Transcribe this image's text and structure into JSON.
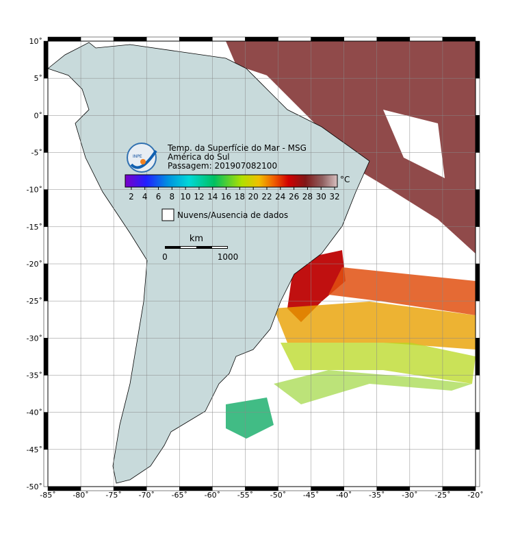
{
  "map": {
    "xticks": [
      {
        "value": -85,
        "label": "-85˚"
      },
      {
        "value": -80,
        "label": "-80˚"
      },
      {
        "value": -75,
        "label": "-75˚"
      },
      {
        "value": -70,
        "label": "-70˚"
      },
      {
        "value": -65,
        "label": "-65˚"
      },
      {
        "value": -60,
        "label": "-60˚"
      },
      {
        "value": -55,
        "label": "-55˚"
      },
      {
        "value": -50,
        "label": "-50˚"
      },
      {
        "value": -45,
        "label": "-45˚"
      },
      {
        "value": -40,
        "label": "-40˚"
      },
      {
        "value": -35,
        "label": "-35˚"
      },
      {
        "value": -30,
        "label": "-30˚"
      },
      {
        "value": -25,
        "label": "-25˚"
      },
      {
        "value": -20,
        "label": "-20˚"
      }
    ],
    "yticks": [
      {
        "value": 10,
        "label": "10˚"
      },
      {
        "value": 5,
        "label": "5˚"
      },
      {
        "value": 0,
        "label": "0˚"
      },
      {
        "value": -5,
        "label": "-5˚"
      },
      {
        "value": -10,
        "label": "-10˚"
      },
      {
        "value": -15,
        "label": "-15˚"
      },
      {
        "value": -20,
        "label": "-20˚"
      },
      {
        "value": -25,
        "label": "-25˚"
      },
      {
        "value": -30,
        "label": "-30˚"
      },
      {
        "value": -35,
        "label": "-35˚"
      },
      {
        "value": -40,
        "label": "-40˚"
      },
      {
        "value": -45,
        "label": "-45˚"
      },
      {
        "value": -50,
        "label": "-50˚"
      }
    ],
    "xlim": [
      -85,
      -20
    ],
    "ylim": [
      -50,
      10
    ],
    "title": "Temp. da Superfície do Mar - MSG",
    "region": "América do Sul",
    "pass": "Passagem: 201907082100",
    "logo_text": "INPE",
    "colorbar": {
      "unit": "°C",
      "range": [
        1.1,
        32.4
      ],
      "ticks": [
        2,
        4,
        6,
        8,
        10,
        12,
        14,
        16,
        18,
        20,
        22,
        24,
        26,
        28,
        30,
        32
      ]
    },
    "no_data_label": "Nuvens/Ausencia de dados",
    "scale_bar": {
      "unit": "km",
      "start": "0",
      "end": "1000"
    }
  }
}
